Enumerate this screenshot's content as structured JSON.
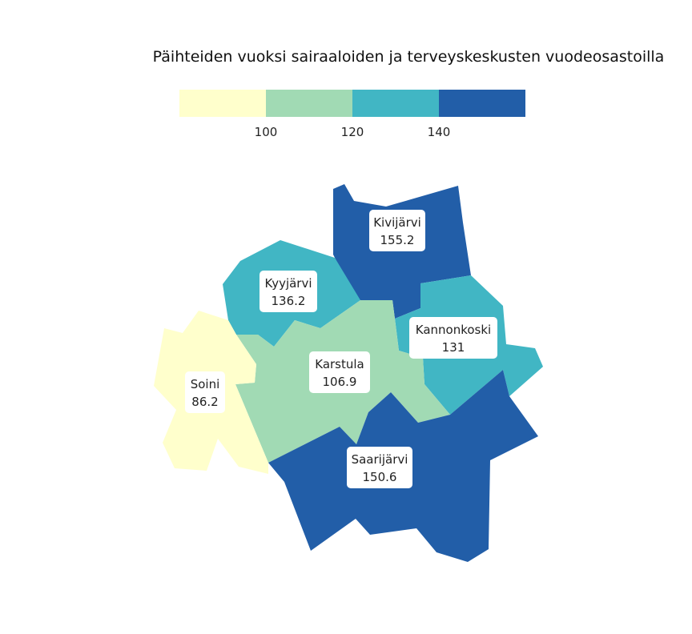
{
  "map": {
    "title": "Päihteiden vuoksi sairaaloiden ja terveyskeskusten vuodeosastoilla",
    "legend": {
      "ticks": [
        "100",
        "120",
        "140"
      ],
      "colors": [
        "#ffffcc",
        "#a1dab4",
        "#41b6c4",
        "#225ea8"
      ]
    },
    "regions": [
      {
        "name": "Kivijärvi",
        "value": "155.2",
        "color": "#225ea8"
      },
      {
        "name": "Kyyjärvi",
        "value": "136.2",
        "color": "#41b6c4"
      },
      {
        "name": "Kannonkoski",
        "value": "131",
        "color": "#41b6c4"
      },
      {
        "name": "Karstula",
        "value": "106.9",
        "color": "#a1dab4"
      },
      {
        "name": "Soini",
        "value": "86.2",
        "color": "#ffffcc"
      },
      {
        "name": "Saarijärvi",
        "value": "150.6",
        "color": "#225ea8"
      }
    ]
  }
}
